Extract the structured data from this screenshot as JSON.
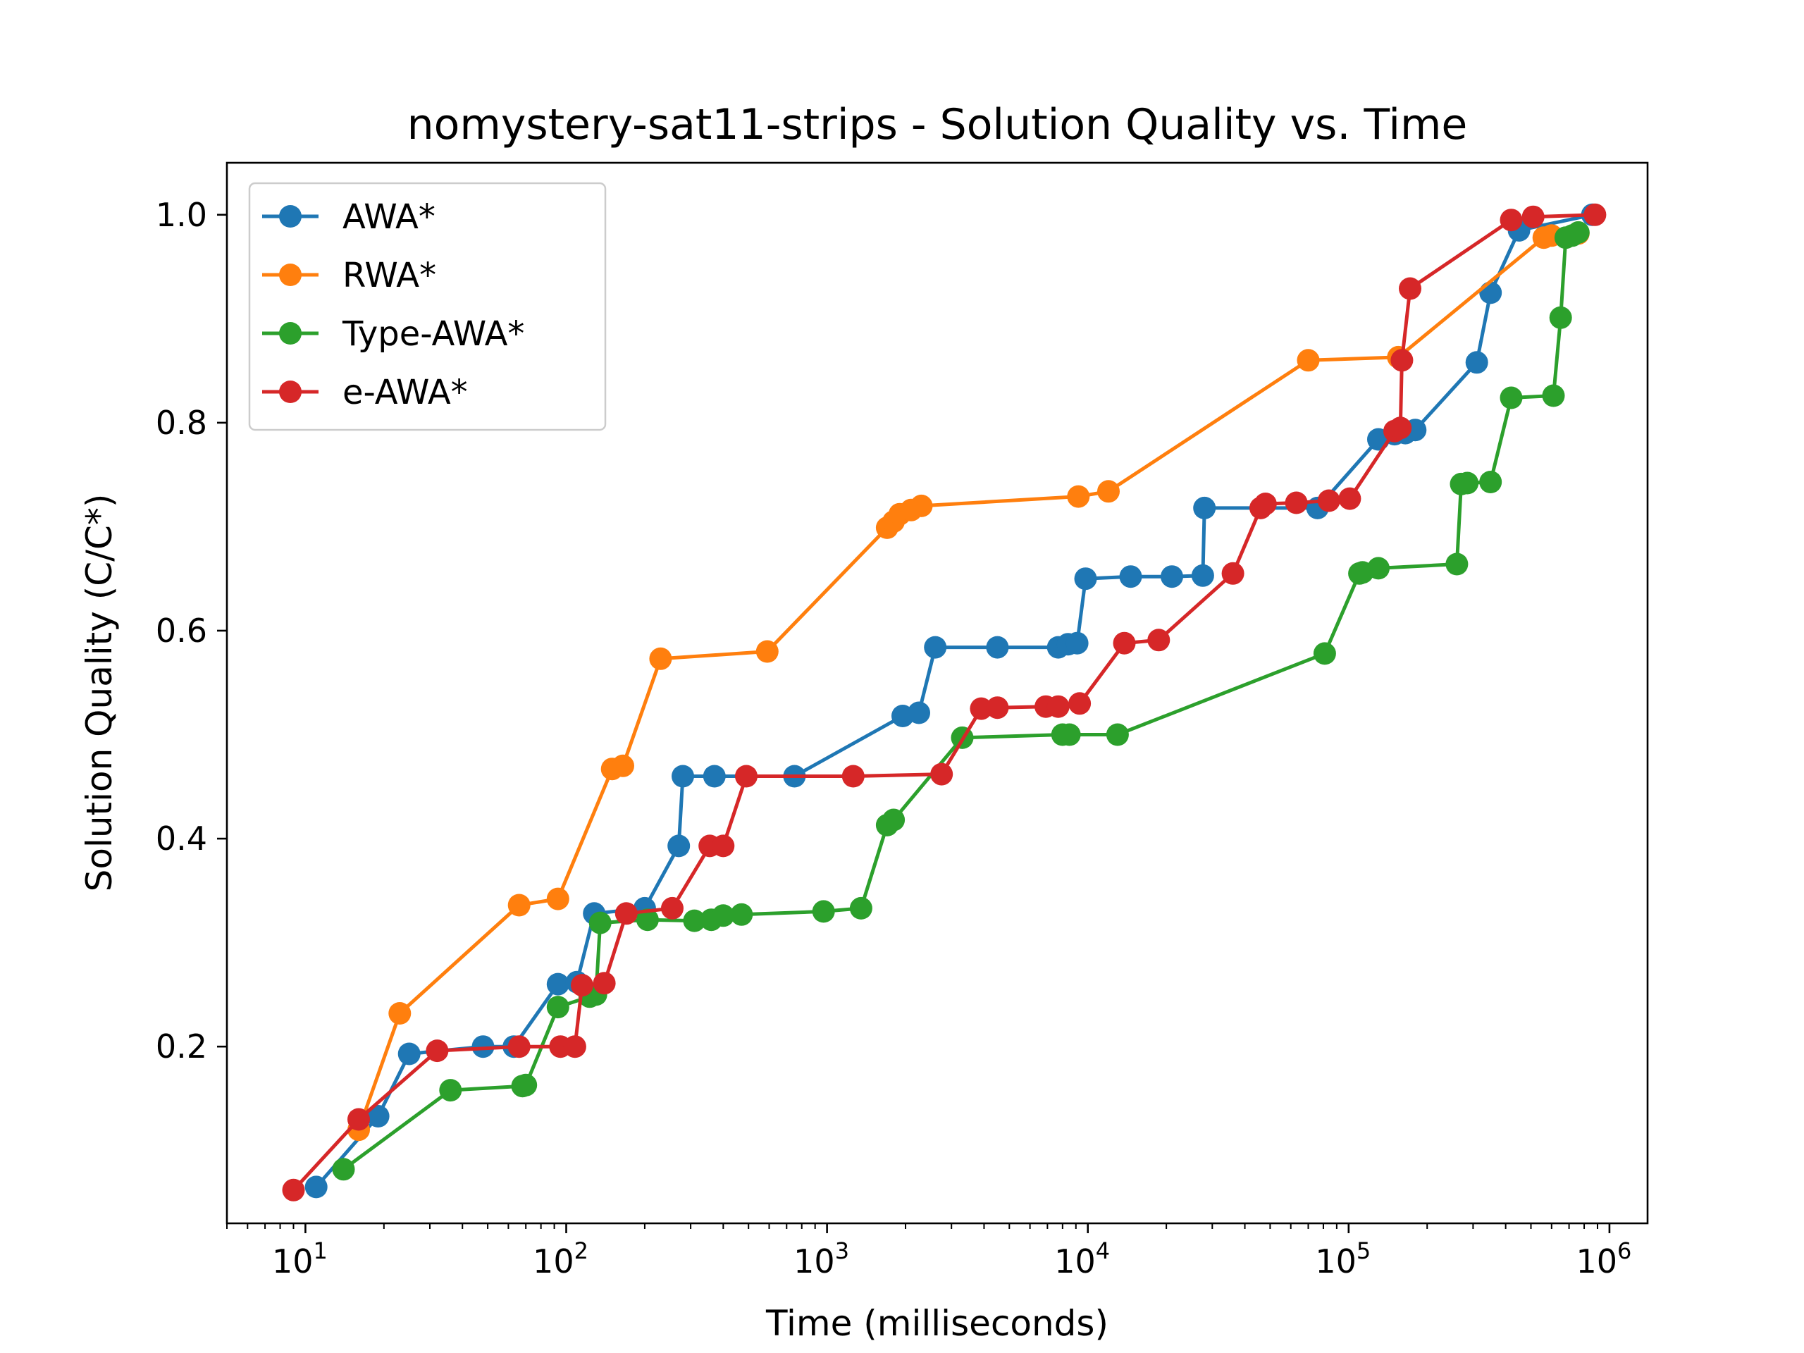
{
  "chart_data": {
    "type": "line",
    "title": "nomystery-sat11-strips - Solution Quality vs. Time",
    "xlabel": "Time (milliseconds)",
    "ylabel": "Solution Quality (C/C*)",
    "xscale": "log",
    "xlim": [
      5,
      1400000
    ],
    "ylim": [
      0.03,
      1.05
    ],
    "x_ticks": [
      {
        "base": "10",
        "exp": "1",
        "value": 10
      },
      {
        "base": "10",
        "exp": "2",
        "value": 100
      },
      {
        "base": "10",
        "exp": "3",
        "value": 1000
      },
      {
        "base": "10",
        "exp": "4",
        "value": 10000
      },
      {
        "base": "10",
        "exp": "5",
        "value": 100000
      },
      {
        "base": "10",
        "exp": "6",
        "value": 1000000
      }
    ],
    "y_ticks": [
      "0.2",
      "0.4",
      "0.6",
      "0.8",
      "1.0"
    ],
    "grid": false,
    "legend_position": "top-left",
    "series": [
      {
        "name": "AWA*",
        "color": "#1f77b4",
        "points": [
          [
            11,
            0.065
          ],
          [
            19,
            0.133
          ],
          [
            25,
            0.193
          ],
          [
            48,
            0.2
          ],
          [
            63,
            0.2
          ],
          [
            93,
            0.26
          ],
          [
            110,
            0.262
          ],
          [
            128,
            0.328
          ],
          [
            200,
            0.333
          ],
          [
            270,
            0.393
          ],
          [
            280,
            0.46
          ],
          [
            370,
            0.46
          ],
          [
            750,
            0.46
          ],
          [
            1950,
            0.518
          ],
          [
            2250,
            0.521
          ],
          [
            2600,
            0.584
          ],
          [
            4500,
            0.584
          ],
          [
            7700,
            0.584
          ],
          [
            8400,
            0.587
          ],
          [
            9100,
            0.588
          ],
          [
            9800,
            0.65
          ],
          [
            14600,
            0.652
          ],
          [
            21000,
            0.652
          ],
          [
            27600,
            0.653
          ],
          [
            28000,
            0.718
          ],
          [
            76000,
            0.718
          ],
          [
            130000,
            0.784
          ],
          [
            150000,
            0.789
          ],
          [
            165000,
            0.79
          ],
          [
            180000,
            0.793
          ],
          [
            310000,
            0.858
          ],
          [
            350000,
            0.925
          ],
          [
            450000,
            0.985
          ],
          [
            860000,
            1.0
          ]
        ]
      },
      {
        "name": "RWA*",
        "color": "#ff7f0e",
        "points": [
          [
            16,
            0.12
          ],
          [
            23,
            0.232
          ],
          [
            66,
            0.336
          ],
          [
            93,
            0.342
          ],
          [
            150,
            0.467
          ],
          [
            165,
            0.47
          ],
          [
            230,
            0.573
          ],
          [
            590,
            0.58
          ],
          [
            1700,
            0.699
          ],
          [
            1800,
            0.705
          ],
          [
            1900,
            0.712
          ],
          [
            2100,
            0.716
          ],
          [
            2300,
            0.72
          ],
          [
            9200,
            0.729
          ],
          [
            12000,
            0.734
          ],
          [
            70000,
            0.86
          ],
          [
            155000,
            0.863
          ],
          [
            560000,
            0.978
          ],
          [
            600000,
            0.98
          ],
          [
            760000,
            0.982
          ]
        ]
      },
      {
        "name": "Type-AWA*",
        "color": "#2ca02c",
        "points": [
          [
            14,
            0.082
          ],
          [
            36,
            0.158
          ],
          [
            68,
            0.162
          ],
          [
            70,
            0.163
          ],
          [
            93,
            0.238
          ],
          [
            123,
            0.248
          ],
          [
            130,
            0.25
          ],
          [
            135,
            0.319
          ],
          [
            205,
            0.322
          ],
          [
            310,
            0.321
          ],
          [
            360,
            0.322
          ],
          [
            400,
            0.326
          ],
          [
            470,
            0.327
          ],
          [
            970,
            0.33
          ],
          [
            1350,
            0.333
          ],
          [
            1700,
            0.413
          ],
          [
            1800,
            0.418
          ],
          [
            3300,
            0.497
          ],
          [
            8000,
            0.5
          ],
          [
            8500,
            0.5
          ],
          [
            13000,
            0.5
          ],
          [
            81000,
            0.578
          ],
          [
            110000,
            0.655
          ],
          [
            113000,
            0.656
          ],
          [
            130000,
            0.66
          ],
          [
            260000,
            0.664
          ],
          [
            270000,
            0.741
          ],
          [
            285000,
            0.742
          ],
          [
            350000,
            0.743
          ],
          [
            420000,
            0.824
          ],
          [
            610000,
            0.826
          ],
          [
            650000,
            0.901
          ],
          [
            680000,
            0.978
          ],
          [
            720000,
            0.98
          ],
          [
            760000,
            0.983
          ]
        ]
      },
      {
        "name": "e-AWA*",
        "color": "#d62728",
        "points": [
          [
            9,
            0.062
          ],
          [
            16,
            0.13
          ],
          [
            32,
            0.196
          ],
          [
            66,
            0.2
          ],
          [
            95,
            0.2
          ],
          [
            108,
            0.2
          ],
          [
            115,
            0.259
          ],
          [
            140,
            0.261
          ],
          [
            170,
            0.328
          ],
          [
            255,
            0.333
          ],
          [
            355,
            0.393
          ],
          [
            400,
            0.393
          ],
          [
            490,
            0.46
          ],
          [
            1260,
            0.46
          ],
          [
            2750,
            0.462
          ],
          [
            3900,
            0.525
          ],
          [
            4500,
            0.526
          ],
          [
            6900,
            0.527
          ],
          [
            7700,
            0.527
          ],
          [
            9300,
            0.53
          ],
          [
            13800,
            0.588
          ],
          [
            18700,
            0.591
          ],
          [
            36000,
            0.655
          ],
          [
            46000,
            0.718
          ],
          [
            48000,
            0.722
          ],
          [
            63000,
            0.723
          ],
          [
            84000,
            0.725
          ],
          [
            101000,
            0.727
          ],
          [
            150000,
            0.792
          ],
          [
            158000,
            0.795
          ],
          [
            160000,
            0.86
          ],
          [
            172000,
            0.929
          ],
          [
            420000,
            0.995
          ],
          [
            510000,
            0.998
          ],
          [
            880000,
            1.0
          ]
        ]
      }
    ]
  }
}
